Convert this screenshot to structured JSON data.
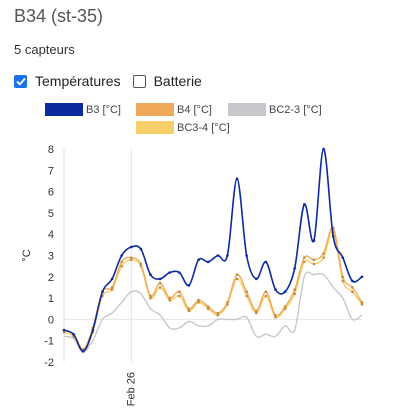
{
  "header": {
    "title": "B34 (st-35)",
    "subtitle": "5 capteurs"
  },
  "toggles": [
    {
      "label": "Températures",
      "checked": true
    },
    {
      "label": "Batterie",
      "checked": false
    }
  ],
  "chart_data": {
    "type": "line",
    "title": "",
    "ylabel": "°C",
    "ylim": [
      -2,
      8
    ],
    "yticks": [
      -2,
      -1,
      0,
      1,
      2,
      3,
      4,
      5,
      6,
      7,
      8
    ],
    "xlim": [
      0,
      30
    ],
    "xticks": [
      {
        "x": 7,
        "label": "Feb 26"
      }
    ],
    "grid": "vertical-left",
    "legend": "top",
    "series": [
      {
        "name": "B3 [°C]",
        "color": "#0b2a9e",
        "points": [
          [
            0,
            -0.5
          ],
          [
            1,
            -0.7
          ],
          [
            2,
            -1.5
          ],
          [
            3,
            -0.5
          ],
          [
            4,
            1.3
          ],
          [
            5,
            1.9
          ],
          [
            6,
            3.0
          ],
          [
            7,
            3.4
          ],
          [
            8,
            3.3
          ],
          [
            9,
            2.1
          ],
          [
            10,
            1.9
          ],
          [
            11,
            2.2
          ],
          [
            12,
            2.2
          ],
          [
            13,
            1.6
          ],
          [
            14,
            2.8
          ],
          [
            15,
            2.7
          ],
          [
            16,
            3.0
          ],
          [
            17,
            3.0
          ],
          [
            18,
            6.6
          ],
          [
            19,
            3.0
          ],
          [
            20,
            1.9
          ],
          [
            21,
            2.7
          ],
          [
            22,
            1.4
          ],
          [
            23,
            1.3
          ],
          [
            24,
            2.4
          ],
          [
            25,
            5.4
          ],
          [
            26,
            3.7
          ],
          [
            27,
            8.0
          ],
          [
            28,
            3.9
          ],
          [
            29,
            2.9
          ],
          [
            30,
            1.8
          ],
          [
            31,
            2.0
          ]
        ]
      },
      {
        "name": "B4 [°C]",
        "color": "#f0a95a",
        "points": [
          [
            0,
            -0.5
          ],
          [
            1,
            -0.7
          ],
          [
            2,
            -1.4
          ],
          [
            3,
            -0.4
          ],
          [
            4,
            1.3
          ],
          [
            5,
            1.5
          ],
          [
            6,
            2.7
          ],
          [
            7,
            2.9
          ],
          [
            8,
            2.6
          ],
          [
            9,
            1.1
          ],
          [
            10,
            1.7
          ],
          [
            11,
            1.0
          ],
          [
            12,
            1.3
          ],
          [
            13,
            0.5
          ],
          [
            14,
            0.9
          ],
          [
            15,
            0.6
          ],
          [
            16,
            0.3
          ],
          [
            17,
            0.8
          ],
          [
            18,
            2.1
          ],
          [
            19,
            1.3
          ],
          [
            20,
            0.4
          ],
          [
            21,
            1.3
          ],
          [
            22,
            0.2
          ],
          [
            23,
            0.6
          ],
          [
            24,
            1.4
          ],
          [
            25,
            2.9
          ],
          [
            26,
            2.8
          ],
          [
            27,
            3.1
          ],
          [
            28,
            4.3
          ],
          [
            29,
            2.0
          ],
          [
            30,
            1.5
          ],
          [
            31,
            0.8
          ]
        ]
      },
      {
        "name": "BC2-3 [°C]",
        "color": "#c8c8cc",
        "points": [
          [
            0,
            -0.8
          ],
          [
            1,
            -0.9
          ],
          [
            2,
            -1.5
          ],
          [
            3,
            -1.0
          ],
          [
            4,
            0.0
          ],
          [
            5,
            0.3
          ],
          [
            6,
            0.8
          ],
          [
            7,
            1.3
          ],
          [
            8,
            1.2
          ],
          [
            9,
            0.5
          ],
          [
            10,
            0.2
          ],
          [
            11,
            -0.4
          ],
          [
            12,
            -0.4
          ],
          [
            13,
            -0.1
          ],
          [
            14,
            -0.3
          ],
          [
            15,
            -0.3
          ],
          [
            16,
            0.0
          ],
          [
            17,
            0.0
          ],
          [
            18,
            0.0
          ],
          [
            19,
            0.1
          ],
          [
            20,
            -0.8
          ],
          [
            21,
            -0.7
          ],
          [
            22,
            -0.8
          ],
          [
            23,
            -0.3
          ],
          [
            24,
            -0.5
          ],
          [
            25,
            2.0
          ],
          [
            26,
            2.1
          ],
          [
            27,
            2.1
          ],
          [
            28,
            1.5
          ],
          [
            29,
            1.0
          ],
          [
            30,
            0.0
          ],
          [
            31,
            0.2
          ]
        ]
      },
      {
        "name": "BC3-4 [°C]",
        "color": "#f7cf6b",
        "points": [
          [
            0,
            -0.6
          ],
          [
            1,
            -0.8
          ],
          [
            2,
            -1.5
          ],
          [
            3,
            -0.6
          ],
          [
            4,
            1.1
          ],
          [
            5,
            1.4
          ],
          [
            6,
            2.5
          ],
          [
            7,
            2.8
          ],
          [
            8,
            2.5
          ],
          [
            9,
            1.0
          ],
          [
            10,
            1.5
          ],
          [
            11,
            0.9
          ],
          [
            12,
            1.1
          ],
          [
            13,
            0.4
          ],
          [
            14,
            0.8
          ],
          [
            15,
            0.5
          ],
          [
            16,
            0.2
          ],
          [
            17,
            0.7
          ],
          [
            18,
            1.9
          ],
          [
            19,
            1.1
          ],
          [
            20,
            0.3
          ],
          [
            21,
            1.1
          ],
          [
            22,
            0.1
          ],
          [
            23,
            0.5
          ],
          [
            24,
            1.2
          ],
          [
            25,
            2.7
          ],
          [
            26,
            2.6
          ],
          [
            27,
            2.9
          ],
          [
            28,
            4.1
          ],
          [
            29,
            1.8
          ],
          [
            30,
            1.3
          ],
          [
            31,
            0.7
          ]
        ]
      }
    ]
  }
}
